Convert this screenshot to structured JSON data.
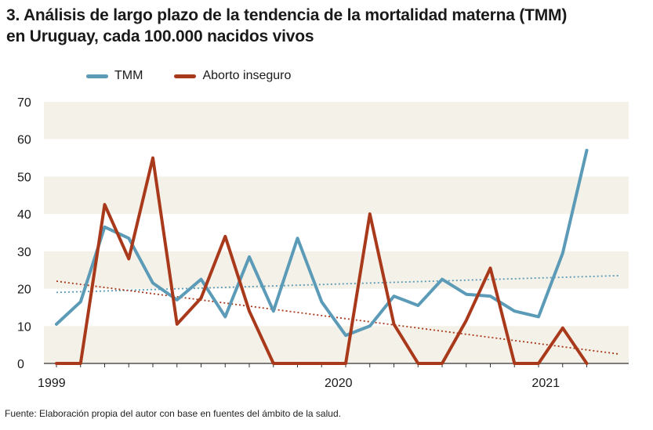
{
  "title_line1": "3. Análisis de largo plazo de la tendencia de la mortalidad materna (TMM)",
  "title_line2": "en Uruguay, cada 100.000 nacidos vivos",
  "source": "Fuente: Elaboración propia del autor con base en fuentes del ámbito de la salud.",
  "colors": {
    "tmm": "#5b9bb7",
    "aborto": "#a9391b",
    "band": "#f4f1e8",
    "axis": "#333333"
  },
  "chart_data": {
    "type": "line",
    "title": "3. Análisis de largo plazo de la tendencia de la mortalidad materna (TMM) en Uruguay, cada 100.000 nacidos vivos",
    "xlabel": "",
    "ylabel": "",
    "ylim": [
      0,
      70
    ],
    "yticks": [
      "0",
      "10",
      "20",
      "30",
      "40",
      "50",
      "60",
      "70"
    ],
    "xtick_labels": [
      {
        "label": "1999",
        "index": -0.2
      },
      {
        "label": "2020",
        "index": 11.7
      },
      {
        "label": "2021",
        "index": 20.3
      }
    ],
    "legend_position": "top-left",
    "grid": "alternating horizontal bands",
    "series": [
      {
        "name": "TMM",
        "key": "tmm",
        "values": [
          10.5,
          16.5,
          36.5,
          33.5,
          21.5,
          17.0,
          22.5,
          12.5,
          28.5,
          14.0,
          33.5,
          16.5,
          7.5,
          10.0,
          18.0,
          15.5,
          22.5,
          18.5,
          18.0,
          14.0,
          12.5,
          29.5,
          57.0
        ]
      },
      {
        "name": "Aborto inseguro",
        "key": "aborto",
        "values": [
          0,
          0,
          42.5,
          28.0,
          55.0,
          10.5,
          17.5,
          34.0,
          14.0,
          0,
          0,
          0,
          0,
          40.0,
          10.5,
          0,
          0,
          11.5,
          25.5,
          0,
          0,
          9.5,
          0
        ]
      }
    ],
    "trendlines": [
      {
        "series": "TMM",
        "start": 19.0,
        "end": 23.5
      },
      {
        "series": "Aborto inseguro",
        "start": 22.0,
        "end": 2.5
      }
    ]
  }
}
